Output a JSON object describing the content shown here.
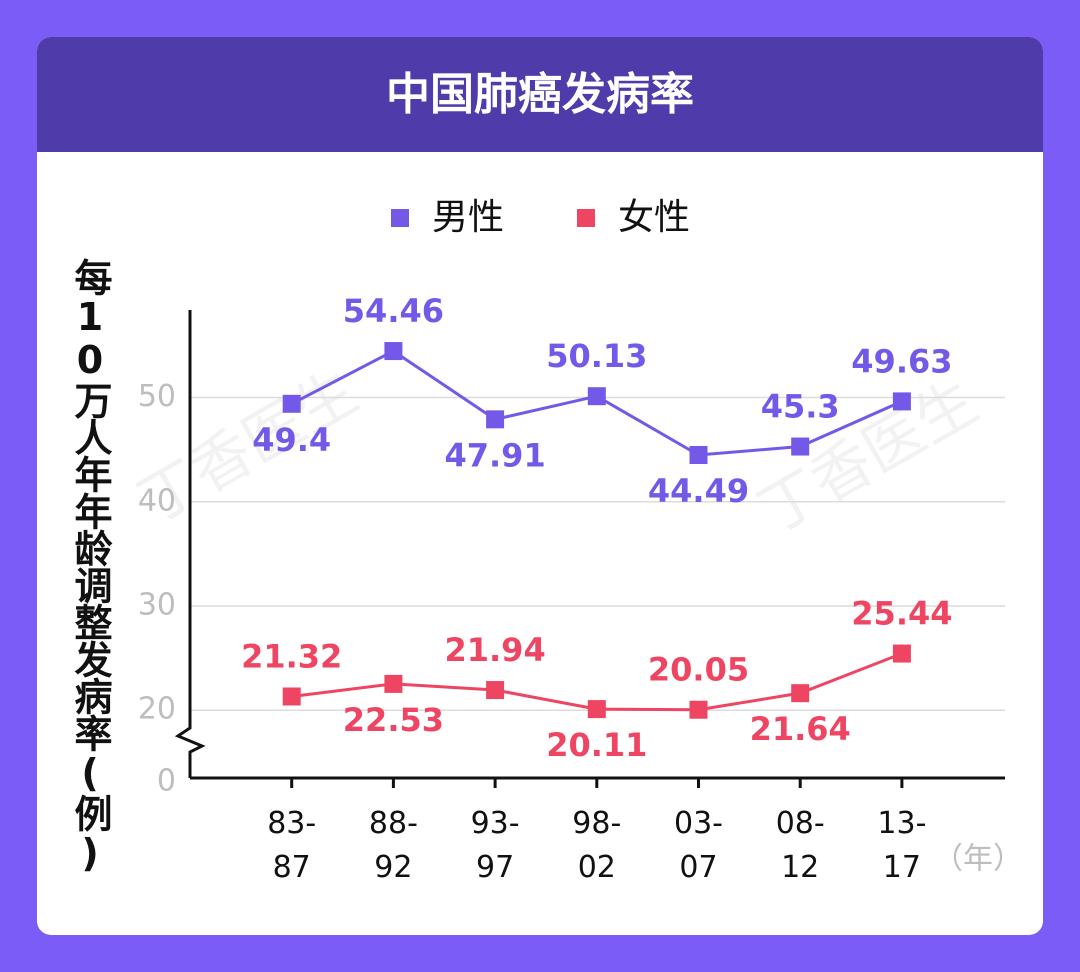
{
  "chart_data": {
    "type": "line",
    "title": "中国肺癌发病率",
    "y_label": "每10万人年年龄调整发病率(例)",
    "x_unit": "（年）",
    "watermark": "丁香医生",
    "categories": [
      "83-87",
      "88-92",
      "93-97",
      "98-02",
      "03-07",
      "08-12",
      "13-17"
    ],
    "series": [
      {
        "name": "男性",
        "color": "#7459e8",
        "values": [
          49.4,
          54.46,
          47.91,
          50.13,
          44.49,
          45.3,
          49.63
        ]
      },
      {
        "name": "女性",
        "color": "#ee4562",
        "values": [
          21.32,
          22.53,
          21.94,
          20.11,
          20.05,
          21.64,
          25.44
        ]
      }
    ],
    "ylim": [
      13.5,
      58.4
    ],
    "yticks": [
      20,
      30,
      40,
      50
    ],
    "y_break_label": "0",
    "grid": true
  }
}
